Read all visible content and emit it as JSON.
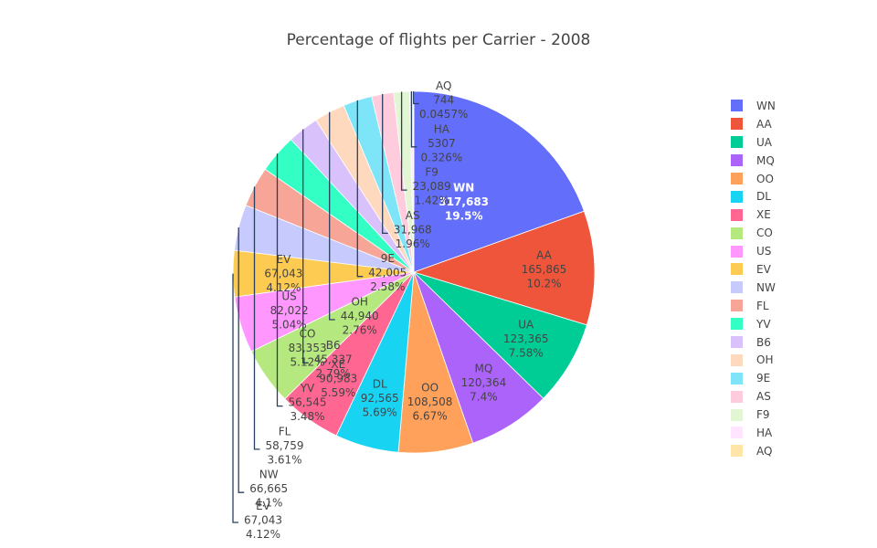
{
  "chart_data": {
    "type": "pie",
    "title": "Percentage of flights per Carrier - 2008",
    "slices": [
      {
        "label": "WN",
        "value": 317683,
        "value_text": "317,683",
        "percent": "19.5%",
        "color": "#636efa"
      },
      {
        "label": "AA",
        "value": 165865,
        "value_text": "165,865",
        "percent": "10.2%",
        "color": "#ef553b"
      },
      {
        "label": "UA",
        "value": 123365,
        "value_text": "123,365",
        "percent": "7.58%",
        "color": "#00cc96"
      },
      {
        "label": "MQ",
        "value": 120364,
        "value_text": "120,364",
        "percent": "7.4%",
        "color": "#ab63fa"
      },
      {
        "label": "OO",
        "value": 108508,
        "value_text": "108,508",
        "percent": "6.67%",
        "color": "#ffa15a"
      },
      {
        "label": "DL",
        "value": 92565,
        "value_text": "92,565",
        "percent": "5.69%",
        "color": "#19d3f3"
      },
      {
        "label": "XE",
        "value": 90983,
        "value_text": "90,983",
        "percent": "5.59%",
        "color": "#ff6692"
      },
      {
        "label": "CO",
        "value": 83353,
        "value_text": "83,353",
        "percent": "5.12%",
        "color": "#b6e880"
      },
      {
        "label": "US",
        "value": 82022,
        "value_text": "82,022",
        "percent": "5.04%",
        "color": "#ff97ff"
      },
      {
        "label": "EV",
        "value": 67043,
        "value_text": "67,043",
        "percent": "4.12%",
        "color": "#fecb52"
      },
      {
        "label": "NW",
        "value": 66665,
        "value_text": "66,665",
        "percent": "4.1%",
        "color": "#c6cafd"
      },
      {
        "label": "FL",
        "value": 58759,
        "value_text": "58,759",
        "percent": "3.61%",
        "color": "#f6a597"
      },
      {
        "label": "YV",
        "value": 56545,
        "value_text": "56,545",
        "percent": "3.48%",
        "color": "#33ffc5"
      },
      {
        "label": "B6",
        "value": 45337,
        "value_text": "45,337",
        "percent": "2.79%",
        "color": "#d9c1fc"
      },
      {
        "label": "OH",
        "value": 44940,
        "value_text": "44,940",
        "percent": "2.76%",
        "color": "#ffd9bd"
      },
      {
        "label": "9E",
        "value": 42005,
        "value_text": "42,005",
        "percent": "2.58%",
        "color": "#7ee5f8"
      },
      {
        "label": "AS",
        "value": 31968,
        "value_text": "31,968",
        "percent": "1.96%",
        "color": "#ffccdd"
      },
      {
        "label": "F9",
        "value": 23089,
        "value_text": "23,089",
        "percent": "1.42%",
        "color": "#e2f6d4"
      },
      {
        "label": "HA",
        "value": 5307,
        "value_text": "5307",
        "percent": "0.326%",
        "color": "#ffe5ff"
      },
      {
        "label": "AQ",
        "value": 744,
        "value_text": "744",
        "percent": "0.0457%",
        "color": "#ffe6a8"
      }
    ],
    "legend_placement": "right",
    "label_line_color": "#2a3f5f",
    "inside_text_color": "#444444",
    "highlight_text_color": "#ffffff"
  }
}
